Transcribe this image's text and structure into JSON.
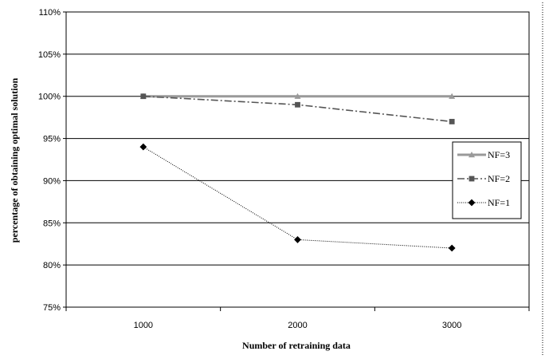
{
  "chart_data": {
    "type": "line",
    "title": "",
    "xlabel": "Number of retraining data",
    "ylabel": "percentage of obtaining optimal solution",
    "categories": [
      "1000",
      "2000",
      "3000"
    ],
    "y_ticks": [
      "75%",
      "80%",
      "85%",
      "90%",
      "95%",
      "100%",
      "105%",
      "110%"
    ],
    "ylim": [
      75,
      110
    ],
    "grid": true,
    "legend_position": "right",
    "series": [
      {
        "name": "NF=3",
        "values": [
          100,
          100,
          100
        ],
        "color": "#999999",
        "marker": "triangle",
        "line_style": "solid"
      },
      {
        "name": "NF=2",
        "values": [
          100,
          99,
          97
        ],
        "color": "#555555",
        "marker": "square",
        "line_style": "dashdot"
      },
      {
        "name": "NF=1",
        "values": [
          94,
          83,
          82
        ],
        "color": "#000000",
        "marker": "diamond",
        "line_style": "dotted"
      }
    ]
  }
}
